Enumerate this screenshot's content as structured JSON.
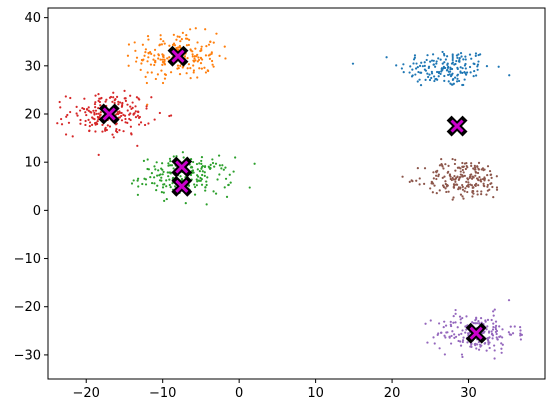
{
  "chart_data": {
    "type": "scatter",
    "title": "",
    "xlabel": "",
    "ylabel": "",
    "xlim": [
      -25,
      40
    ],
    "ylim": [
      -35,
      42
    ],
    "grid": false,
    "x_ticks": [
      -20,
      -10,
      0,
      10,
      20,
      30
    ],
    "y_ticks": [
      -30,
      -20,
      -10,
      0,
      10,
      20,
      30,
      40
    ],
    "x_tick_labels": [
      "−20",
      "−10",
      "0",
      "10",
      "20",
      "30"
    ],
    "y_tick_labels": [
      "−30",
      "−20",
      "−10",
      "0",
      "10",
      "20",
      "30",
      "40"
    ],
    "clusters": [
      {
        "color": "#1f77b4",
        "center": [
          27,
          29.5
        ],
        "spread": [
          3.0,
          2.0
        ],
        "count": 170
      },
      {
        "color": "#ff7f0e",
        "center": [
          -8,
          32
        ],
        "spread": [
          2.6,
          2.4
        ],
        "count": 200
      },
      {
        "color": "#2ca02c",
        "center": [
          -7,
          7
        ],
        "spread": [
          3.0,
          2.0
        ],
        "count": 200
      },
      {
        "color": "#d62728",
        "center": [
          -17,
          20
        ],
        "spread": [
          2.7,
          2.2
        ],
        "count": 200
      },
      {
        "color": "#9467bd",
        "center": [
          31,
          -25.5
        ],
        "spread": [
          2.6,
          2.0
        ],
        "count": 200
      },
      {
        "color": "#8c564b",
        "center": [
          29.5,
          6.5
        ],
        "spread": [
          2.6,
          2.0
        ],
        "count": 200
      }
    ],
    "centroids": [
      {
        "x": -8,
        "y": 32
      },
      {
        "x": -17,
        "y": 20
      },
      {
        "x": -7.5,
        "y": 9
      },
      {
        "x": -7.5,
        "y": 5
      },
      {
        "x": 28.5,
        "y": 17.5
      },
      {
        "x": 31,
        "y": -25.5
      }
    ],
    "centroid_fill": "#cc00cc",
    "centroid_edge": "#000000"
  }
}
